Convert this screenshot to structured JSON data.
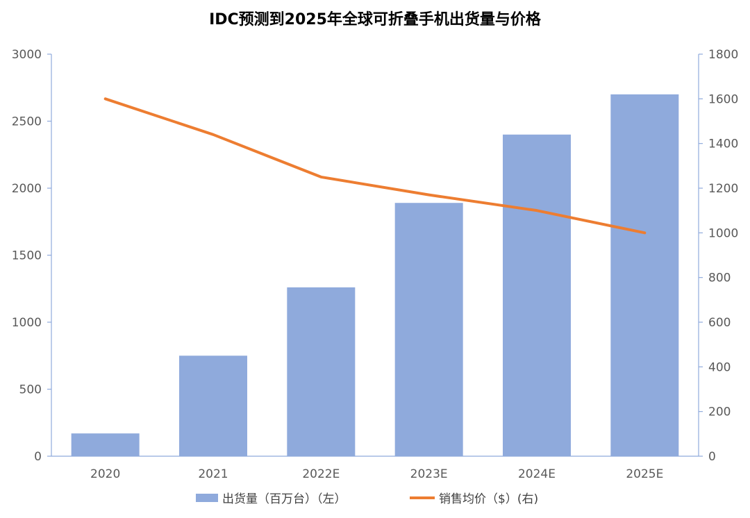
{
  "chart_data": {
    "type": "bar",
    "title": "IDC预测到2025年全球可折叠手机出货量与价格",
    "categories": [
      "2020",
      "2021",
      "2022E",
      "2023E",
      "2024E",
      "2025E"
    ],
    "series": [
      {
        "name": "出货量（百万台）（左）",
        "type": "bar",
        "axis": "left",
        "color": "#8FAADC",
        "values": [
          170,
          750,
          1260,
          1890,
          2400,
          2700
        ]
      },
      {
        "name": "销售均价（$）(右)",
        "type": "line",
        "axis": "right",
        "color": "#ED7D31",
        "values": [
          1600,
          1440,
          1250,
          1170,
          1100,
          1000
        ]
      }
    ],
    "y_left": {
      "range": [
        0,
        3000
      ],
      "ticks": [
        "0",
        "500",
        "1000",
        "1500",
        "2000",
        "2500",
        "3000"
      ]
    },
    "y_right": {
      "range": [
        0,
        1800
      ],
      "ticks": [
        "0",
        "200",
        "400",
        "600",
        "800",
        "1000",
        "1200",
        "1400",
        "1600",
        "1800"
      ]
    },
    "grid": false,
    "legend_position": "bottom"
  }
}
